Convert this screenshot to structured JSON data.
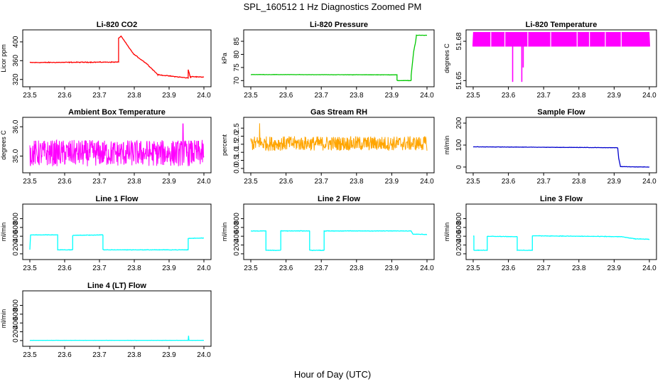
{
  "figure": {
    "title": "SPL_160512  1 Hz Diagnostics Zoomed PM",
    "xlabel": "Hour of Day (UTC)"
  },
  "chart_data": [
    {
      "id": "co2",
      "type": "line",
      "title": "Li-820 CO2",
      "ylabel": "Licor ppm",
      "color": "#ff0000",
      "xlim": [
        23.5,
        24.0
      ],
      "xticks": [
        23.5,
        23.6,
        23.7,
        23.8,
        23.9,
        24.0
      ],
      "xtick_labels": [
        "23.5",
        "23.6",
        "23.7",
        "23.8",
        "23.9",
        "24.0"
      ],
      "ylim": [
        312,
        418
      ],
      "yticks": [
        320,
        360,
        400
      ],
      "ytick_labels": [
        "320",
        "360",
        "400"
      ],
      "noise": 1.2,
      "x": [
        23.5,
        23.755,
        23.755,
        23.762,
        23.762,
        23.798,
        23.798,
        23.835,
        23.835,
        23.868,
        23.868,
        23.955,
        23.955,
        23.962,
        23.962,
        24.0
      ],
      "y": [
        356,
        357,
        408,
        412,
        412,
        374,
        374,
        354,
        354,
        330,
        330,
        323,
        341,
        323,
        326,
        325
      ]
    },
    {
      "id": "pressure",
      "type": "line",
      "title": "Li-820 Pressure",
      "ylabel": "kPa",
      "color": "#00c800",
      "xlim": [
        23.5,
        24.0
      ],
      "xticks": [
        23.5,
        23.6,
        23.7,
        23.8,
        23.9,
        24.0
      ],
      "xtick_labels": [
        "23.5",
        "23.6",
        "23.7",
        "23.8",
        "23.9",
        "24.0"
      ],
      "ylim": [
        69,
        88
      ],
      "yticks": [
        70,
        75,
        80,
        85
      ],
      "ytick_labels": [
        "70",
        "75",
        "80",
        "85"
      ],
      "noise": 0.08,
      "x": [
        23.5,
        23.915,
        23.915,
        23.955,
        23.955,
        23.962,
        23.968,
        23.97,
        24.0
      ],
      "y": [
        72.3,
        72.2,
        70.0,
        70.0,
        72.0,
        81.0,
        85.0,
        87.3,
        87.3
      ]
    },
    {
      "id": "licor_temp",
      "type": "band",
      "title": "Li-820 Temperature",
      "ylabel": "degrees C",
      "color": "#ff00ff",
      "xlim": [
        23.5,
        24.0
      ],
      "xticks": [
        23.5,
        23.6,
        23.7,
        23.8,
        23.9,
        24.0
      ],
      "xtick_labels": [
        "23.5",
        "23.6",
        "23.7",
        "23.8",
        "23.9",
        "24.0"
      ],
      "ylim": [
        51.648,
        51.686
      ],
      "yticks": [
        51.65,
        51.68
      ],
      "ytick_labels": [
        "51.65",
        "51.68"
      ],
      "band": [
        51.676,
        51.687
      ],
      "spikes": [
        [
          23.612,
          51.649
        ],
        [
          23.638,
          51.649
        ],
        [
          23.642,
          51.66
        ]
      ]
    },
    {
      "id": "box_temp",
      "type": "noise",
      "title": "Ambient Box Temperature",
      "ylabel": "degrees C",
      "color": "#ff00ff",
      "xlim": [
        23.5,
        24.0
      ],
      "xticks": [
        23.5,
        23.6,
        23.7,
        23.8,
        23.9,
        24.0
      ],
      "xtick_labels": [
        "23.5",
        "23.6",
        "23.7",
        "23.8",
        "23.9",
        "24.0"
      ],
      "ylim": [
        34.55,
        36.2
      ],
      "yticks": [
        35.0,
        36.0
      ],
      "ytick_labels": [
        "35.0",
        "36.0"
      ],
      "range": [
        34.65,
        35.55
      ],
      "spike": [
        23.94,
        36.1
      ]
    },
    {
      "id": "rh",
      "type": "noise",
      "title": "Gas Stream RH",
      "ylabel": "percent",
      "color": "#ffa500",
      "xlim": [
        23.5,
        24.0
      ],
      "xticks": [
        23.5,
        23.6,
        23.7,
        23.8,
        23.9,
        24.0
      ],
      "xtick_labels": [
        "23.5",
        "23.6",
        "23.7",
        "23.8",
        "23.9",
        "24.0"
      ],
      "ylim": [
        -0.05,
        2.95
      ],
      "yticks": [
        0.0,
        0.5,
        1.0,
        1.5,
        2.0,
        2.5
      ],
      "ytick_labels": [
        "0.0",
        "0.5",
        "1.0",
        "1.5",
        "2.0",
        "2.5"
      ],
      "range": [
        1.1,
        2.0
      ],
      "spike": [
        23.525,
        2.8
      ]
    },
    {
      "id": "sample_flow",
      "type": "line",
      "title": "Sample Flow",
      "ylabel": "ml/min",
      "color": "#0000cd",
      "xlim": [
        23.5,
        24.0
      ],
      "xticks": [
        23.5,
        23.6,
        23.7,
        23.8,
        23.9,
        24.0
      ],
      "xtick_labels": [
        "23.5",
        "23.6",
        "23.7",
        "23.8",
        "23.9",
        "24.0"
      ],
      "ylim": [
        -10,
        210
      ],
      "yticks": [
        0,
        100,
        200
      ],
      "ytick_labels": [
        "0",
        "100",
        "200"
      ],
      "noise": 1.0,
      "x": [
        23.5,
        23.91,
        23.913,
        23.918,
        24.0
      ],
      "y": [
        92,
        88,
        40,
        2,
        0
      ]
    },
    {
      "id": "line1",
      "type": "line",
      "title": "Line 1 Flow",
      "ylabel": "ml/min",
      "color": "#00ffff",
      "xlim": [
        23.5,
        24.0
      ],
      "xticks": [
        23.5,
        23.6,
        23.7,
        23.8,
        23.9,
        24.0
      ],
      "xtick_labels": [
        "23.5",
        "23.6",
        "23.7",
        "23.8",
        "23.9",
        "24.0"
      ],
      "ylim": [
        -50,
        1050
      ],
      "yticks": [
        0,
        200,
        400,
        600,
        800
      ],
      "ytick_labels": [
        "0",
        "200",
        "400",
        "600",
        "800"
      ],
      "noise": 8,
      "x": [
        23.5,
        23.502,
        23.58,
        23.58,
        23.623,
        23.623,
        23.71,
        23.71,
        23.955,
        23.955,
        24.0
      ],
      "y": [
        90,
        430,
        430,
        90,
        90,
        420,
        430,
        90,
        90,
        350,
        360
      ]
    },
    {
      "id": "line2",
      "type": "line",
      "title": "Line 2 Flow",
      "ylabel": "ml/min",
      "color": "#00ffff",
      "xlim": [
        23.5,
        24.0
      ],
      "xticks": [
        23.5,
        23.6,
        23.7,
        23.8,
        23.9,
        24.0
      ],
      "xtick_labels": [
        "23.5",
        "23.6",
        "23.7",
        "23.8",
        "23.9",
        "24.0"
      ],
      "ylim": [
        -50,
        1050
      ],
      "yticks": [
        0,
        200,
        400,
        600,
        800
      ],
      "ytick_labels": [
        "0",
        "200",
        "400",
        "600",
        "800"
      ],
      "noise": 8,
      "x": [
        23.5,
        23.543,
        23.543,
        23.585,
        23.585,
        23.667,
        23.667,
        23.708,
        23.708,
        23.955,
        23.96,
        24.0
      ],
      "y": [
        520,
        520,
        80,
        80,
        520,
        520,
        80,
        80,
        520,
        520,
        450,
        440
      ]
    },
    {
      "id": "line3",
      "type": "line",
      "title": "Line 3 Flow",
      "ylabel": "ml/min",
      "color": "#00ffff",
      "xlim": [
        23.5,
        24.0
      ],
      "xticks": [
        23.5,
        23.6,
        23.7,
        23.8,
        23.9,
        24.0
      ],
      "xtick_labels": [
        "23.5",
        "23.6",
        "23.7",
        "23.8",
        "23.9",
        "24.0"
      ],
      "ylim": [
        -50,
        1050
      ],
      "yticks": [
        0,
        200,
        400,
        600,
        800
      ],
      "ytick_labels": [
        "0",
        "200",
        "400",
        "600",
        "800"
      ],
      "noise": 8,
      "x": [
        23.5,
        23.502,
        23.502,
        23.54,
        23.54,
        23.625,
        23.625,
        23.668,
        23.668,
        23.92,
        23.96,
        24.0
      ],
      "y": [
        400,
        400,
        80,
        80,
        400,
        390,
        80,
        80,
        410,
        390,
        340,
        330
      ]
    },
    {
      "id": "line4",
      "type": "line",
      "title": "Line 4 (LT) Flow",
      "ylabel": "ml/min",
      "color": "#00ffff",
      "xlim": [
        23.5,
        24.0
      ],
      "xticks": [
        23.5,
        23.6,
        23.7,
        23.8,
        23.9,
        24.0
      ],
      "xtick_labels": [
        "23.5",
        "23.6",
        "23.7",
        "23.8",
        "23.9",
        "24.0"
      ],
      "ylim": [
        -50,
        1050
      ],
      "yticks": [
        0,
        200,
        400,
        600,
        800
      ],
      "ytick_labels": [
        "0",
        "200",
        "400",
        "600",
        "800"
      ],
      "noise": 2,
      "x": [
        23.5,
        23.955,
        23.956,
        23.957,
        24.0
      ],
      "y": [
        5,
        5,
        110,
        5,
        5
      ]
    }
  ]
}
